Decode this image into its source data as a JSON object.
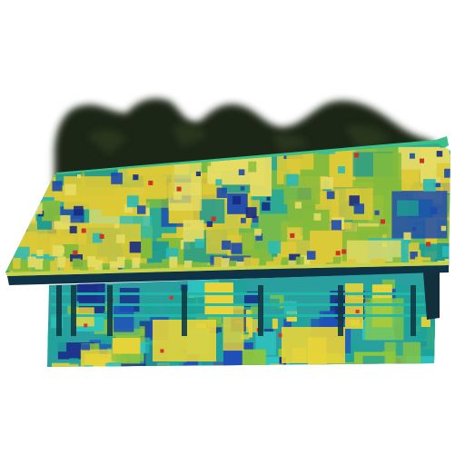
{
  "image": {
    "subject": "point-cloud-building",
    "background_color": "#ffffff",
    "palette": {
      "tree_dark": "#1b2416",
      "tree_mid": "#2b3a22",
      "roof_base": "#2fb59a",
      "wall_base": "#2a9fa0",
      "yellow": "#e8d43a",
      "yellow_light": "#f2e86a",
      "green": "#8cc63f",
      "teal": "#1fa39a",
      "cyan": "#2ec4c0",
      "blue": "#1f4fb8",
      "blue_dark": "#1a2e8a",
      "red": "#d8352a",
      "eave_dark": "#123a4a",
      "rail": "#20b8a8"
    }
  }
}
